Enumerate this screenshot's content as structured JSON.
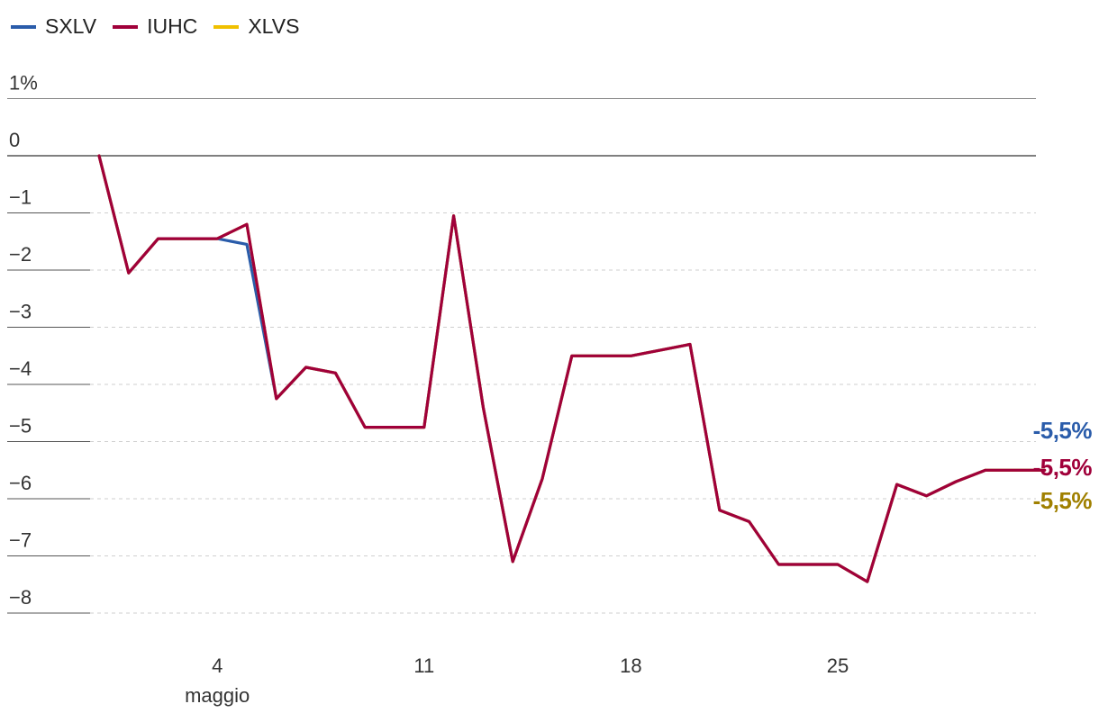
{
  "legend": [
    {
      "name": "SXLV",
      "color": "#2a5caa"
    },
    {
      "name": "IUHC",
      "color": "#a0003a"
    },
    {
      "name": "XLVS",
      "color": "#f0c000"
    }
  ],
  "end_labels": [
    {
      "text": "-5,5%",
      "color": "#2a5caa"
    },
    {
      "text": "-5,5%",
      "color": "#a0003a"
    },
    {
      "text": "-5,5%",
      "color": "#a08000"
    }
  ],
  "chart_data": {
    "type": "line",
    "title": "",
    "xlabel": "",
    "ylabel": "",
    "ylim": [
      -8.0,
      1.0
    ],
    "y_ticks": [
      {
        "value": 1,
        "label": "1%"
      },
      {
        "value": 0,
        "label": "0"
      },
      {
        "value": -1,
        "label": "−1"
      },
      {
        "value": -2,
        "label": "−2"
      },
      {
        "value": -3,
        "label": "−3"
      },
      {
        "value": -4,
        "label": "−4"
      },
      {
        "value": -5,
        "label": "−5"
      },
      {
        "value": -6,
        "label": "−6"
      },
      {
        "value": -7,
        "label": "−7"
      },
      {
        "value": -8,
        "label": "−8"
      }
    ],
    "x_ticks": [
      {
        "x": 4,
        "label": "4",
        "sublabel": "maggio"
      },
      {
        "x": 11,
        "label": "11",
        "sublabel": ""
      },
      {
        "x": 18,
        "label": "18",
        "sublabel": ""
      },
      {
        "x": 25,
        "label": "25",
        "sublabel": ""
      }
    ],
    "x": [
      0,
      1,
      2,
      3,
      4,
      5,
      6,
      7,
      8,
      9,
      10,
      11,
      12,
      13,
      14,
      15,
      16,
      17,
      18,
      19,
      20,
      21,
      22,
      23,
      24,
      25,
      26,
      27,
      28,
      29,
      30,
      31,
      32
    ],
    "series": [
      {
        "name": "SXLV",
        "color": "#2a5caa",
        "values": [
          0,
          -2.05,
          -1.45,
          -1.45,
          -1.45,
          -1.55,
          -4.25,
          -3.7,
          -3.8,
          -4.75,
          -4.75,
          -4.75,
          -1.05,
          -4.4,
          -7.1,
          -5.65,
          -3.5,
          -3.5,
          -3.5,
          -3.4,
          -3.3,
          -6.2,
          -6.4,
          -7.15,
          -7.15,
          -7.15,
          -7.45,
          -5.75,
          -5.95,
          -5.7,
          -5.5,
          -5.5,
          -5.5
        ]
      },
      {
        "name": "XLVS",
        "color": "#f0c000",
        "values": [
          0,
          -2.05,
          -1.45,
          -1.45,
          -1.45,
          -1.2,
          -4.25,
          -3.7,
          -3.8,
          -4.75,
          -4.75,
          -4.75,
          -1.05,
          -4.4,
          -7.1,
          -5.65,
          -3.5,
          -3.5,
          -3.5,
          -3.4,
          -3.3,
          -6.2,
          -6.4,
          -7.15,
          -7.15,
          -7.15,
          -7.45,
          -5.75,
          -5.95,
          -5.7,
          -5.5,
          -5.5,
          -5.5
        ]
      },
      {
        "name": "IUHC",
        "color": "#a0003a",
        "values": [
          0,
          -2.05,
          -1.45,
          -1.45,
          -1.45,
          -1.2,
          -4.25,
          -3.7,
          -3.8,
          -4.75,
          -4.75,
          -4.75,
          -1.05,
          -4.4,
          -7.1,
          -5.65,
          -3.5,
          -3.5,
          -3.5,
          -3.4,
          -3.3,
          -6.2,
          -6.4,
          -7.15,
          -7.15,
          -7.15,
          -7.45,
          -5.75,
          -5.95,
          -5.7,
          -5.5,
          -5.5,
          -5.5
        ]
      }
    ]
  }
}
